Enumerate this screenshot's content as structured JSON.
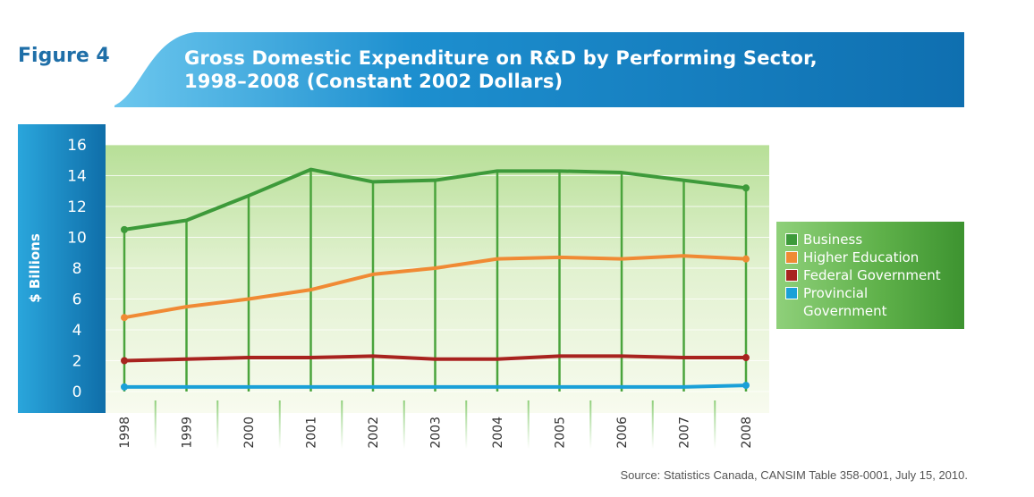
{
  "figure_label": "Figure 4",
  "source": "Source: Statistics Canada, CANSIM Table 358-0001, July 15, 2010.",
  "chart_data": {
    "type": "line",
    "title": "Gross Domestic Expenditure on R&D by Performing Sector,\n1998–2008 (Constant 2002 Dollars)",
    "xlabel": "",
    "ylabel": "$ Billions",
    "ylim": [
      0,
      16
    ],
    "yticks": [
      "0",
      "2",
      "4",
      "6",
      "8",
      "10",
      "12",
      "14",
      "16"
    ],
    "categories": [
      "1998",
      "1999",
      "2000",
      "2001",
      "2002",
      "2003",
      "2004",
      "2005",
      "2006",
      "2007",
      "2008"
    ],
    "grid": true,
    "legend_position": "right",
    "series": [
      {
        "name": "Business",
        "color": "#3d9a3a",
        "values": [
          10.5,
          11.1,
          12.7,
          14.4,
          13.6,
          13.7,
          14.3,
          14.3,
          14.2,
          13.7,
          13.2
        ]
      },
      {
        "name": "Higher Education",
        "color": "#f08a34",
        "values": [
          4.8,
          5.5,
          6.0,
          6.6,
          7.6,
          8.0,
          8.6,
          8.7,
          8.6,
          8.8,
          8.6
        ]
      },
      {
        "name": "Federal Government",
        "color": "#a8231f",
        "values": [
          2.0,
          2.1,
          2.2,
          2.2,
          2.3,
          2.1,
          2.1,
          2.3,
          2.3,
          2.2,
          2.2
        ]
      },
      {
        "name": "Provincial\nGovernment",
        "color": "#1aa0d8",
        "values": [
          0.3,
          0.3,
          0.3,
          0.3,
          0.3,
          0.3,
          0.3,
          0.3,
          0.3,
          0.3,
          0.4
        ]
      }
    ]
  }
}
